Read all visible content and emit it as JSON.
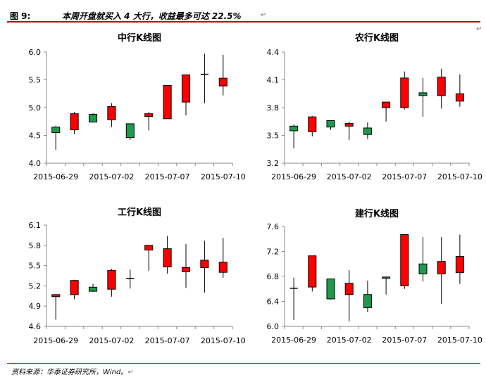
{
  "header": {
    "figure_no": "图 9:",
    "title": "本周开盘就买入 4 大行，收益最多可达 22.5%",
    "return_mark": "↵"
  },
  "footer": {
    "source": "资料来源：华泰证券研究所，Wind。",
    "return_mark": "↵"
  },
  "side_mark": "↵",
  "colors": {
    "up": "#ff0000",
    "down": "#1f9a4c",
    "doji": "#000000",
    "axis": "#888888",
    "rule": "#c00000"
  },
  "chart_data": [
    {
      "type": "candlestick",
      "title": "中行K线图",
      "xlabel": "",
      "ylabel": "",
      "ylim": [
        4.0,
        6.0
      ],
      "yticks": [
        "4.0",
        "4.5",
        "5.0",
        "5.5",
        "6.0"
      ],
      "xtick_labels": [
        {
          "index": 0,
          "label": "2015-06-29"
        },
        {
          "index": 3,
          "label": "2015-07-02"
        },
        {
          "index": 6,
          "label": "2015-07-07"
        },
        {
          "index": 9,
          "label": "2015-07-10"
        }
      ],
      "candles": [
        {
          "open": 4.65,
          "high": 4.67,
          "low": 4.24,
          "close": 4.55
        },
        {
          "open": 4.6,
          "high": 4.92,
          "low": 4.52,
          "close": 4.89
        },
        {
          "open": 4.88,
          "high": 4.9,
          "low": 4.73,
          "close": 4.74
        },
        {
          "open": 4.78,
          "high": 5.08,
          "low": 4.65,
          "close": 5.02
        },
        {
          "open": 4.71,
          "high": 4.71,
          "low": 4.42,
          "close": 4.46
        },
        {
          "open": 4.84,
          "high": 4.92,
          "low": 4.59,
          "close": 4.89
        },
        {
          "open": 4.8,
          "high": 5.4,
          "low": 4.8,
          "close": 5.4
        },
        {
          "open": 5.1,
          "high": 5.59,
          "low": 4.86,
          "close": 5.59
        },
        {
          "open": 5.59,
          "high": 5.97,
          "low": 5.08,
          "close": 5.6
        },
        {
          "open": 5.39,
          "high": 5.95,
          "low": 5.22,
          "close": 5.53
        }
      ]
    },
    {
      "type": "candlestick",
      "title": "农行K线图",
      "xlabel": "",
      "ylabel": "",
      "ylim": [
        3.2,
        4.4
      ],
      "yticks": [
        "3.2",
        "3.5",
        "3.8",
        "4.1",
        "4.4"
      ],
      "xtick_labels": [
        {
          "index": 0,
          "label": "2015-06-29"
        },
        {
          "index": 3,
          "label": "2015-07-02"
        },
        {
          "index": 6,
          "label": "2015-07-07"
        },
        {
          "index": 9,
          "label": "2015-07-10"
        }
      ],
      "candles": [
        {
          "open": 3.6,
          "high": 3.62,
          "low": 3.36,
          "close": 3.55
        },
        {
          "open": 3.54,
          "high": 3.71,
          "low": 3.49,
          "close": 3.7
        },
        {
          "open": 3.66,
          "high": 3.66,
          "low": 3.56,
          "close": 3.59
        },
        {
          "open": 3.6,
          "high": 3.65,
          "low": 3.45,
          "close": 3.63
        },
        {
          "open": 3.58,
          "high": 3.64,
          "low": 3.46,
          "close": 3.51
        },
        {
          "open": 3.8,
          "high": 3.86,
          "low": 3.65,
          "close": 3.86
        },
        {
          "open": 3.8,
          "high": 4.19,
          "low": 3.78,
          "close": 4.12
        },
        {
          "open": 3.96,
          "high": 4.12,
          "low": 3.7,
          "close": 3.93
        },
        {
          "open": 3.93,
          "high": 4.22,
          "low": 3.79,
          "close": 4.13
        },
        {
          "open": 3.87,
          "high": 4.16,
          "low": 3.81,
          "close": 3.95
        }
      ]
    },
    {
      "type": "candlestick",
      "title": "工行K线图",
      "xlabel": "",
      "ylabel": "",
      "ylim": [
        4.6,
        6.1
      ],
      "yticks": [
        "4.6",
        "4.9",
        "5.2",
        "5.5",
        "5.8",
        "6.1"
      ],
      "xtick_labels": [
        {
          "index": 0,
          "label": "2015-06-29"
        },
        {
          "index": 3,
          "label": "2015-07-02"
        },
        {
          "index": 6,
          "label": "2015-07-07"
        },
        {
          "index": 9,
          "label": "2015-07-10"
        }
      ],
      "candles": [
        {
          "open": 5.04,
          "high": 5.07,
          "low": 4.7,
          "close": 5.07
        },
        {
          "open": 5.07,
          "high": 5.29,
          "low": 5.0,
          "close": 5.28
        },
        {
          "open": 5.18,
          "high": 5.23,
          "low": 5.11,
          "close": 5.12
        },
        {
          "open": 5.15,
          "high": 5.45,
          "low": 5.04,
          "close": 5.43
        },
        {
          "open": 5.3,
          "high": 5.44,
          "low": 5.16,
          "close": 5.31
        },
        {
          "open": 5.73,
          "high": 5.8,
          "low": 5.42,
          "close": 5.8
        },
        {
          "open": 5.48,
          "high": 5.94,
          "low": 5.38,
          "close": 5.75
        },
        {
          "open": 5.41,
          "high": 5.82,
          "low": 5.17,
          "close": 5.47
        },
        {
          "open": 5.47,
          "high": 5.87,
          "low": 5.1,
          "close": 5.58
        },
        {
          "open": 5.4,
          "high": 5.91,
          "low": 5.32,
          "close": 5.55
        }
      ]
    },
    {
      "type": "candlestick",
      "title": "建行K线图",
      "xlabel": "",
      "ylabel": "",
      "ylim": [
        6.0,
        7.6
      ],
      "yticks": [
        "6.0",
        "6.4",
        "6.8",
        "7.2",
        "7.6"
      ],
      "xtick_labels": [
        {
          "index": 0,
          "label": "2015-06-29"
        },
        {
          "index": 3,
          "label": "2015-07-02"
        },
        {
          "index": 6,
          "label": "2015-07-07"
        },
        {
          "index": 9,
          "label": "2015-07-10"
        }
      ],
      "candles": [
        {
          "open": 6.62,
          "high": 6.78,
          "low": 6.1,
          "close": 6.61
        },
        {
          "open": 6.63,
          "high": 7.13,
          "low": 6.56,
          "close": 7.13
        },
        {
          "open": 6.76,
          "high": 6.76,
          "low": 6.43,
          "close": 6.44
        },
        {
          "open": 6.51,
          "high": 6.9,
          "low": 6.08,
          "close": 6.69
        },
        {
          "open": 6.51,
          "high": 6.73,
          "low": 6.23,
          "close": 6.3
        },
        {
          "open": 6.79,
          "high": 6.8,
          "low": 6.51,
          "close": 6.77
        },
        {
          "open": 6.65,
          "high": 7.47,
          "low": 6.6,
          "close": 7.47
        },
        {
          "open": 7.0,
          "high": 7.43,
          "low": 6.72,
          "close": 6.84
        },
        {
          "open": 6.84,
          "high": 7.43,
          "low": 6.36,
          "close": 7.04
        },
        {
          "open": 6.86,
          "high": 7.47,
          "low": 6.68,
          "close": 7.12
        }
      ]
    }
  ]
}
